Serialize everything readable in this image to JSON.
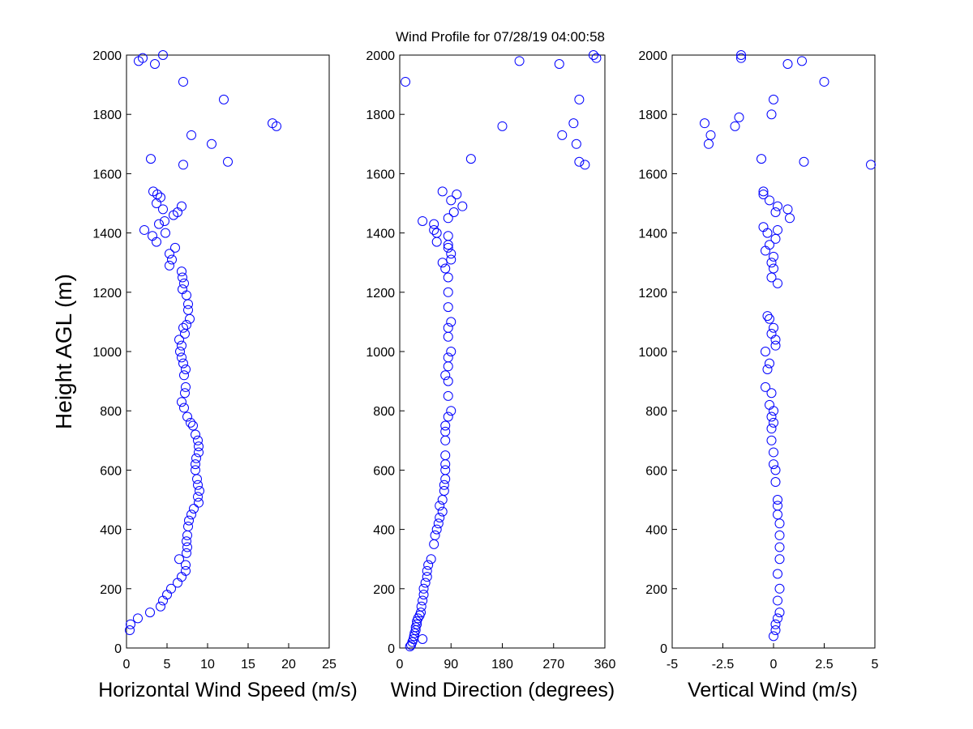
{
  "figure": {
    "title": "Wind Profile for  07/28/19 04:00:58",
    "marker_color": "#0000ff"
  },
  "chart_data": [
    {
      "type": "scatter",
      "xlabel": "Horizontal Wind Speed (m/s)",
      "ylabel": "Height AGL (m)",
      "xlim": [
        0,
        25
      ],
      "ylim": [
        0,
        2000
      ],
      "xticks": [
        0,
        5,
        10,
        15,
        20,
        25
      ],
      "xtick_labels": [
        "0",
        "5",
        "10",
        "15",
        "20",
        "25"
      ],
      "yticks": [
        0,
        200,
        400,
        600,
        800,
        1000,
        1200,
        1400,
        1600,
        1800,
        2000
      ],
      "ytick_labels": [
        "0",
        "200",
        "400",
        "600",
        "800",
        "1000",
        "1200",
        "1400",
        "1600",
        "1800",
        "2000"
      ],
      "series": [
        {
          "x": [
            4.5,
            2.0,
            1.5,
            3.5,
            7.0,
            12.0,
            18.0,
            18.5,
            8.0,
            10.5,
            12.5,
            7.0,
            3.0,
            3.3,
            3.8,
            4.2,
            3.7,
            6.8,
            4.5,
            6.3,
            5.8,
            4.7,
            4.0,
            2.2,
            3.2,
            4.8,
            3.7,
            6.0,
            5.3,
            5.6,
            5.3,
            6.8,
            6.9,
            7.1,
            6.9,
            7.4,
            7.6,
            7.6,
            7.8,
            7.4,
            7.0,
            7.2,
            6.5,
            6.8,
            6.6,
            6.8,
            7.0,
            7.3,
            7.1,
            7.3,
            7.2,
            6.8,
            7.1,
            7.5,
            7.9,
            8.2,
            8.5,
            8.8,
            8.9,
            8.9,
            8.6,
            8.5,
            8.5,
            8.7,
            8.8,
            9.0,
            8.8,
            8.9,
            8.3,
            8.0,
            7.7,
            7.6,
            7.5,
            7.4,
            7.5,
            7.4,
            6.5,
            7.3,
            7.3,
            6.8,
            6.3,
            5.5,
            5.0,
            4.5,
            4.2,
            2.9,
            1.4,
            0.5,
            0.4
          ],
          "y": [
            2000,
            1990,
            1980,
            1970,
            1910,
            1850,
            1770,
            1760,
            1730,
            1700,
            1640,
            1630,
            1650,
            1540,
            1530,
            1520,
            1500,
            1490,
            1480,
            1470,
            1460,
            1440,
            1430,
            1410,
            1390,
            1400,
            1370,
            1350,
            1330,
            1310,
            1290,
            1270,
            1250,
            1230,
            1210,
            1190,
            1160,
            1140,
            1110,
            1090,
            1080,
            1060,
            1040,
            1020,
            1000,
            980,
            960,
            940,
            920,
            880,
            860,
            830,
            810,
            780,
            760,
            750,
            720,
            700,
            680,
            660,
            640,
            620,
            600,
            570,
            550,
            530,
            510,
            490,
            470,
            450,
            430,
            410,
            380,
            360,
            340,
            320,
            300,
            280,
            260,
            240,
            220,
            200,
            180,
            160,
            140,
            120,
            100,
            80,
            60
          ]
        }
      ]
    },
    {
      "type": "scatter",
      "xlabel": "Wind Direction (degrees)",
      "ylabel": "",
      "xlim": [
        0,
        360
      ],
      "ylim": [
        0,
        2000
      ],
      "xticks": [
        0,
        90,
        180,
        270,
        360
      ],
      "xtick_labels": [
        "0",
        "90",
        "180",
        "270",
        "360"
      ],
      "yticks": [
        0,
        200,
        400,
        600,
        800,
        1000,
        1200,
        1400,
        1600,
        1800,
        2000
      ],
      "ytick_labels": [
        "0",
        "200",
        "400",
        "600",
        "800",
        "1000",
        "1200",
        "1400",
        "1600",
        "1800",
        "2000"
      ],
      "series": [
        {
          "x": [
            340,
            345,
            210,
            280,
            10,
            315,
            180,
            305,
            285,
            310,
            125,
            315,
            325,
            75,
            100,
            90,
            110,
            95,
            85,
            85,
            40,
            60,
            60,
            65,
            85,
            65,
            85,
            90,
            90,
            75,
            80,
            85,
            85,
            85,
            90,
            85,
            85,
            90,
            85,
            85,
            80,
            85,
            85,
            90,
            85,
            80,
            80,
            80,
            80,
            80,
            80,
            80,
            78,
            78,
            75,
            70,
            75,
            70,
            68,
            65,
            62,
            60,
            55,
            50,
            48,
            48,
            45,
            42,
            42,
            40,
            38,
            37,
            35,
            32,
            30,
            30,
            28,
            28,
            26,
            25,
            24,
            22,
            20,
            18,
            40
          ],
          "y": [
            2000,
            1990,
            1980,
            1970,
            1910,
            1850,
            1760,
            1770,
            1730,
            1700,
            1650,
            1640,
            1630,
            1540,
            1530,
            1510,
            1490,
            1470,
            1450,
            1390,
            1440,
            1430,
            1410,
            1400,
            1360,
            1370,
            1350,
            1330,
            1310,
            1300,
            1280,
            1250,
            1200,
            1150,
            1100,
            1080,
            1050,
            1000,
            980,
            950,
            920,
            900,
            850,
            800,
            780,
            750,
            730,
            700,
            650,
            620,
            600,
            570,
            550,
            530,
            500,
            480,
            460,
            440,
            420,
            400,
            380,
            350,
            300,
            280,
            260,
            240,
            220,
            200,
            180,
            160,
            140,
            120,
            110,
            100,
            90,
            80,
            70,
            60,
            50,
            40,
            30,
            20,
            10,
            5,
            30
          ]
        }
      ]
    },
    {
      "type": "scatter",
      "xlabel": "Vertical Wind (m/s)",
      "ylabel": "",
      "xlim": [
        -5,
        5
      ],
      "ylim": [
        0,
        2000
      ],
      "xticks": [
        -5,
        -2.5,
        0,
        2.5,
        5
      ],
      "xtick_labels": [
        "-5",
        "-2.5",
        "0",
        "2.5",
        "5"
      ],
      "yticks": [
        0,
        200,
        400,
        600,
        800,
        1000,
        1200,
        1400,
        1600,
        1800,
        2000
      ],
      "ytick_labels": [
        "0",
        "200",
        "400",
        "600",
        "800",
        "1000",
        "1200",
        "1400",
        "1600",
        "1800",
        "2000"
      ],
      "series": [
        {
          "x": [
            -1.6,
            -1.6,
            0.7,
            1.4,
            2.5,
            0,
            -0.1,
            -3.4,
            -1.7,
            -1.9,
            -3.1,
            -3.2,
            -0.6,
            1.5,
            4.8,
            -0.5,
            -0.5,
            -0.2,
            0.2,
            0.7,
            0.1,
            0.8,
            -0.5,
            0.2,
            -0.3,
            0.1,
            -0.2,
            -0.4,
            0,
            -0.1,
            0,
            -0.1,
            0.2,
            -0.3,
            -0.2,
            0,
            -0.1,
            0.1,
            0.1,
            -0.4,
            -0.2,
            -0.3,
            -0.4,
            -0.1,
            -0.2,
            0,
            -0.1,
            0,
            -0.1,
            -0.1,
            0,
            0,
            0.1,
            0.1,
            0.2,
            0.2,
            0.2,
            0.3,
            0.3,
            0.3,
            0.3,
            0.2,
            0.3,
            0.2,
            0.3,
            0.2,
            0.1,
            0.1,
            0
          ],
          "y": [
            2000,
            1990,
            1970,
            1980,
            1910,
            1850,
            1800,
            1770,
            1790,
            1760,
            1730,
            1700,
            1650,
            1640,
            1630,
            1530,
            1540,
            1510,
            1490,
            1480,
            1470,
            1450,
            1420,
            1410,
            1400,
            1380,
            1360,
            1340,
            1320,
            1300,
            1280,
            1250,
            1230,
            1120,
            1110,
            1080,
            1060,
            1040,
            1020,
            1000,
            960,
            940,
            880,
            860,
            820,
            800,
            780,
            760,
            740,
            700,
            660,
            620,
            600,
            560,
            500,
            480,
            450,
            420,
            380,
            340,
            300,
            250,
            200,
            160,
            120,
            100,
            80,
            60,
            40
          ]
        }
      ]
    }
  ]
}
